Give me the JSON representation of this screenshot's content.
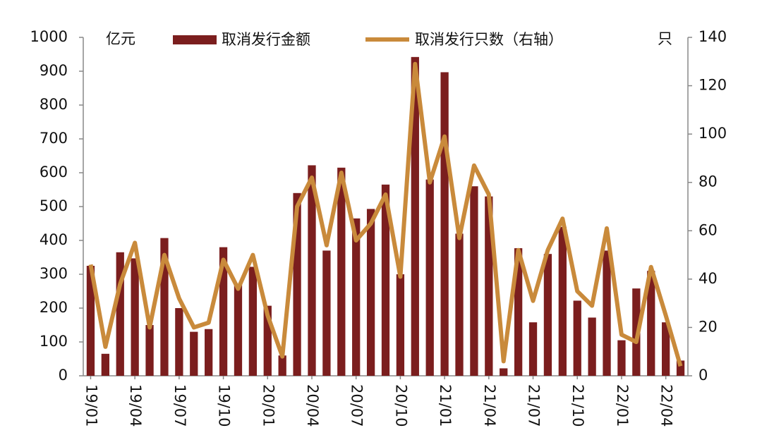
{
  "chart_data": {
    "type": "bar_line",
    "y_unit_label": "亿元",
    "y2_unit_label": "只",
    "categories": [
      "19/01",
      null,
      null,
      "19/04",
      null,
      null,
      "19/07",
      null,
      null,
      "19/10",
      null,
      null,
      "20/01",
      null,
      null,
      "20/04",
      null,
      null,
      "20/07",
      null,
      null,
      "20/10",
      null,
      null,
      "21/01",
      null,
      null,
      "21/04",
      null,
      null,
      "21/07",
      null,
      null,
      "21/10",
      null,
      null,
      "22/01",
      null,
      null,
      "22/04",
      null
    ],
    "series": [
      {
        "name": "取消发行金额",
        "type": "bar",
        "color": "#7b1e1e",
        "values": [
          325,
          65,
          365,
          347,
          150,
          407,
          200,
          130,
          138,
          380,
          270,
          322,
          207,
          60,
          540,
          622,
          370,
          615,
          465,
          493,
          565,
          300,
          942,
          580,
          897,
          420,
          560,
          530,
          22,
          377,
          158,
          360,
          440,
          222,
          172,
          370,
          105,
          258,
          310,
          158,
          45
        ]
      },
      {
        "name": "取消发行只数（右轴）",
        "type": "line",
        "axis": "y2",
        "color": "#c98a3b",
        "values": [
          46,
          12,
          38,
          55,
          20,
          50,
          32,
          20,
          22,
          48,
          36,
          50,
          25,
          8,
          70,
          82,
          54,
          84,
          56,
          63,
          75,
          41,
          129,
          80,
          99,
          57,
          87,
          75,
          6,
          52,
          31,
          52,
          65,
          35,
          29,
          61,
          17,
          14,
          45,
          25,
          4
        ]
      }
    ],
    "ylim": [
      0,
      1000
    ],
    "yticks": [
      0,
      100,
      200,
      300,
      400,
      500,
      600,
      700,
      800,
      900,
      1000
    ],
    "y2lim": [
      0,
      140
    ],
    "y2ticks": [
      0,
      20,
      40,
      60,
      80,
      100,
      120,
      140
    ]
  }
}
